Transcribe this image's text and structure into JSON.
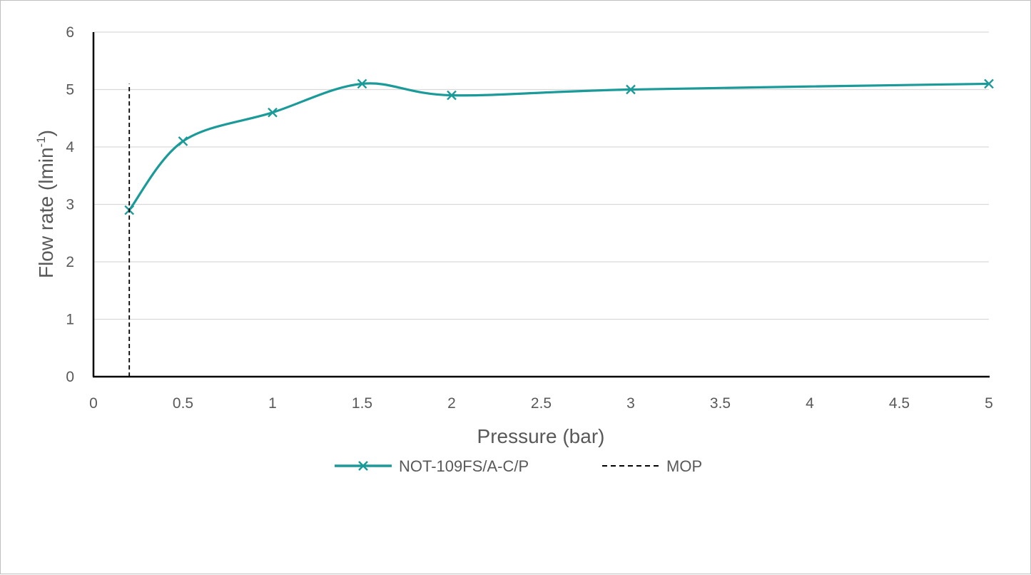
{
  "chart_data": {
    "type": "scatter",
    "title": "",
    "xlabel": "Pressure (bar)",
    "ylabel": {
      "prefix": "Flow rate (lmin",
      "superscript": "-1",
      "suffix": ")"
    },
    "xlim": [
      0,
      5
    ],
    "ylim": [
      0,
      6
    ],
    "x_ticks": [
      "0",
      "0.5",
      "1",
      "1.5",
      "2",
      "2.5",
      "3",
      "3.5",
      "4",
      "4.5",
      "5"
    ],
    "y_ticks": [
      "0",
      "1",
      "2",
      "3",
      "4",
      "5",
      "6"
    ],
    "grid": "horizontal",
    "legend_position": "bottom",
    "series": [
      {
        "name": "NOT-109FS/A-C/P",
        "style": "smooth line with x markers",
        "color": "#1a9a98",
        "x": [
          0.2,
          0.5,
          1,
          1.5,
          2,
          3,
          5
        ],
        "y": [
          2.9,
          4.1,
          4.6,
          5.1,
          4.9,
          5.0,
          5.1
        ]
      },
      {
        "name": "MOP",
        "style": "dashed vertical line",
        "color": "#000000",
        "x": [
          0.2,
          0.2
        ],
        "y": [
          0,
          5.1
        ]
      }
    ]
  }
}
